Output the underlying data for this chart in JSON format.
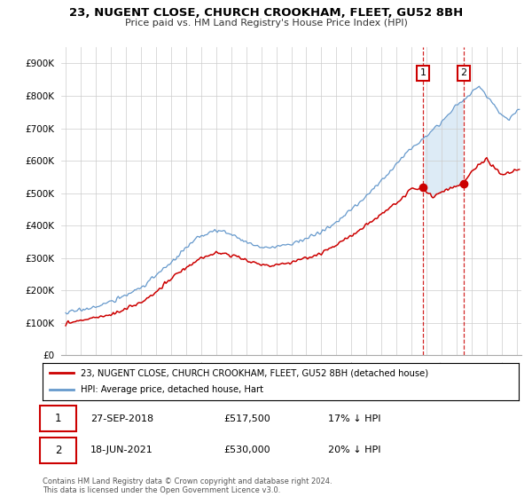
{
  "title1": "23, NUGENT CLOSE, CHURCH CROOKHAM, FLEET, GU52 8BH",
  "title2": "Price paid vs. HM Land Registry's House Price Index (HPI)",
  "ylabel_ticks": [
    "£0",
    "£100K",
    "£200K",
    "£300K",
    "£400K",
    "£500K",
    "£600K",
    "£700K",
    "£800K",
    "£900K"
  ],
  "ytick_values": [
    0,
    100000,
    200000,
    300000,
    400000,
    500000,
    600000,
    700000,
    800000,
    900000
  ],
  "ylim": [
    0,
    950000
  ],
  "legend_line1": "23, NUGENT CLOSE, CHURCH CROOKHAM, FLEET, GU52 8BH (detached house)",
  "legend_line2": "HPI: Average price, detached house, Hart",
  "annotation1_label": "1",
  "annotation1_date": "27-SEP-2018",
  "annotation1_price": "£517,500",
  "annotation1_hpi": "17% ↓ HPI",
  "annotation2_label": "2",
  "annotation2_date": "18-JUN-2021",
  "annotation2_price": "£530,000",
  "annotation2_hpi": "20% ↓ HPI",
  "footnote": "Contains HM Land Registry data © Crown copyright and database right 2024.\nThis data is licensed under the Open Government Licence v3.0.",
  "color_red": "#cc0000",
  "color_blue": "#6699cc",
  "color_shading": "#d8e8f5",
  "background_color": "#ffffff",
  "grid_color": "#cccccc",
  "sale1_t": 23.75,
  "sale1_price": 517500,
  "sale2_t": 26.47,
  "sale2_price": 530000,
  "start_year": 1995,
  "end_year": 2025,
  "xlim_min": -0.3,
  "xlim_max": 30.3
}
